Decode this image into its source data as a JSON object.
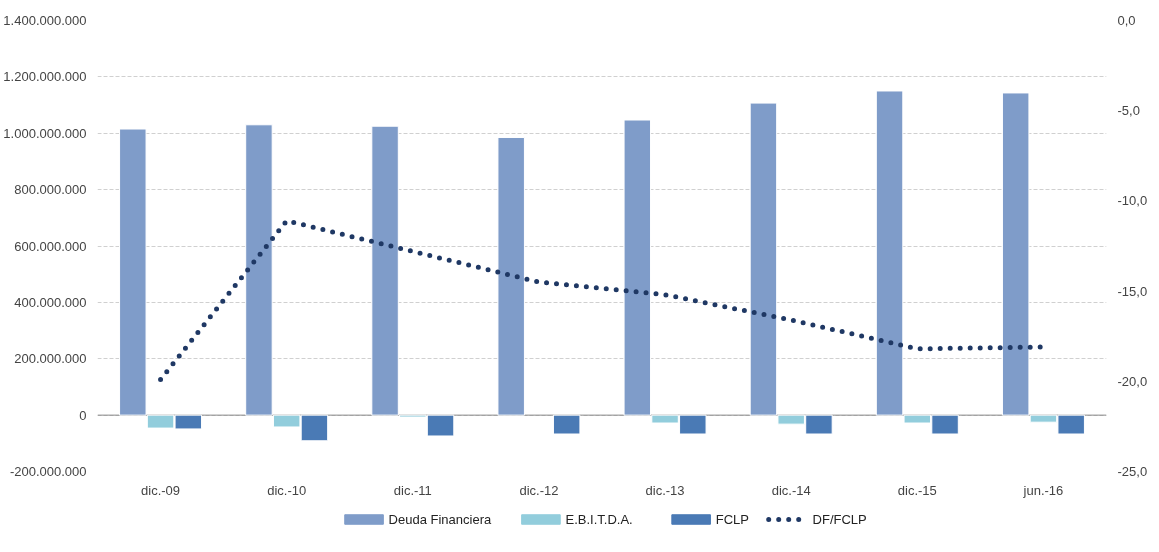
{
  "chart_data": {
    "type": "bar",
    "categories": [
      "dic.-09",
      "dic.-10",
      "dic.-11",
      "dic.-12",
      "dic.-13",
      "dic.-14",
      "dic.-15",
      "jun.-16"
    ],
    "series": [
      {
        "name": "Deuda Financiera",
        "color": "#7f9cc9",
        "values": [
          1015000000,
          1030000000,
          1025000000,
          985000000,
          1047000000,
          1107000000,
          1150000000,
          1143000000
        ]
      },
      {
        "name": "E.B.I.T.D.A.",
        "color": "#92cddc",
        "values": [
          -46000000,
          -42000000,
          -7000000,
          null,
          -28000000,
          -32000000,
          -28000000,
          -25000000
        ]
      },
      {
        "name": "FCLP",
        "color": "#4a7ab5",
        "values": [
          -49000000,
          -91000000,
          -74000000,
          -67000000,
          -67000000,
          -67000000,
          -67000000,
          -67000000
        ]
      },
      {
        "name": "DF/FCLP",
        "color": "#1f3864",
        "type": "line",
        "axis": "y2",
        "line_style": "dotted",
        "values": [
          -19.9,
          -11.1,
          -12.8,
          -14.5,
          -15.2,
          -16.6,
          -18.2,
          -18.1
        ]
      }
    ],
    "ylim": [
      -200000000,
      1400000000
    ],
    "yticks": [
      {
        "value": -200000000,
        "label": "-200.000.000"
      },
      {
        "value": 0,
        "label": "0"
      },
      {
        "value": 200000000,
        "label": "200.000.000"
      },
      {
        "value": 400000000,
        "label": "400.000.000"
      },
      {
        "value": 600000000,
        "label": "600.000.000"
      },
      {
        "value": 800000000,
        "label": "800.000.000"
      },
      {
        "value": 1000000000,
        "label": "1.000.000.000"
      },
      {
        "value": 1200000000,
        "label": "1.200.000.000"
      },
      {
        "value": 1400000000,
        "label": "1.400.000.000"
      }
    ],
    "y2lim": [
      -25,
      0
    ],
    "y2ticks": [
      {
        "value": -25,
        "label": "-25,0"
      },
      {
        "value": -20,
        "label": "-20,0"
      },
      {
        "value": -15,
        "label": "-15,0"
      },
      {
        "value": -10,
        "label": "-10,0"
      },
      {
        "value": -5,
        "label": "-5,0"
      },
      {
        "value": 0,
        "label": "0,0"
      }
    ],
    "grid": "y",
    "legend": "bottom"
  }
}
